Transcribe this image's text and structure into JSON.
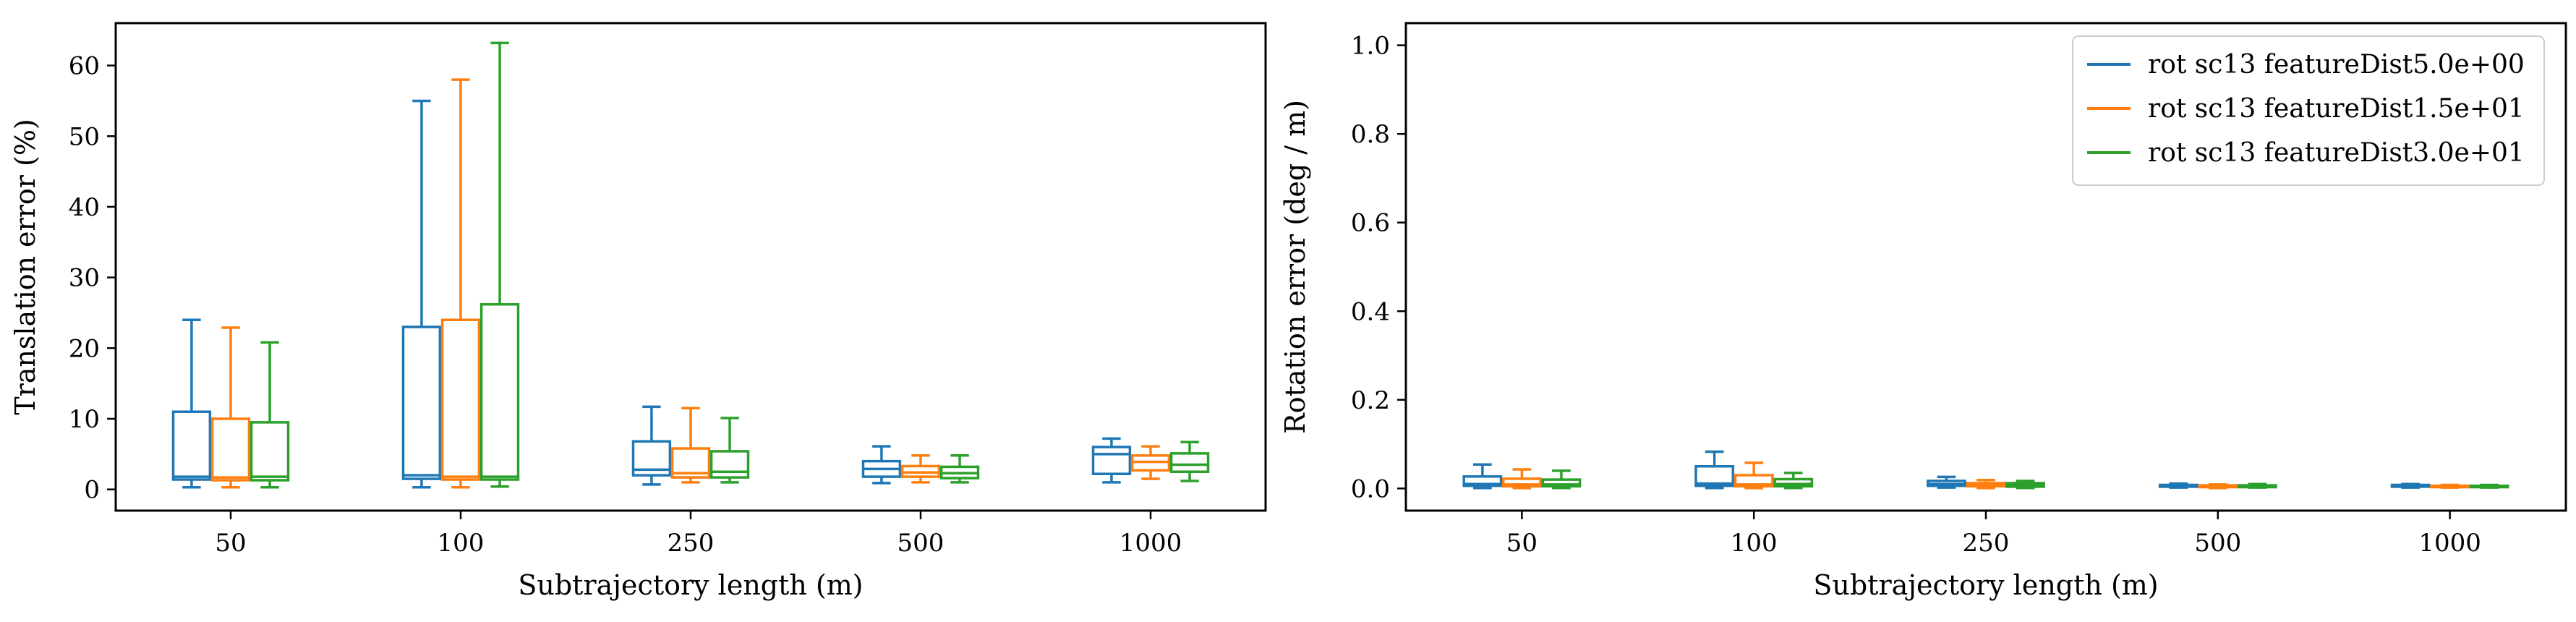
{
  "chart_data": [
    {
      "type": "box",
      "xlabel": "Subtrajectory length (m)",
      "ylabel": "Translation error (%)",
      "categories": [
        "50",
        "100",
        "250",
        "500",
        "1000"
      ],
      "ylim": [
        -3,
        66
      ],
      "yticks": [
        0,
        10,
        20,
        30,
        40,
        50,
        60
      ],
      "grid": false,
      "series": [
        {
          "name": "rot sc13 featureDist5.0e+00",
          "color": "#1f77b4",
          "boxes": [
            {
              "whislo": 0.3,
              "q1": 1.4,
              "med": 1.8,
              "q3": 11.0,
              "whishi": 24.0
            },
            {
              "whislo": 0.3,
              "q1": 1.5,
              "med": 2.0,
              "q3": 23.0,
              "whishi": 55.0
            },
            {
              "whislo": 0.7,
              "q1": 2.0,
              "med": 2.8,
              "q3": 6.8,
              "whishi": 11.7
            },
            {
              "whislo": 0.9,
              "q1": 1.8,
              "med": 2.9,
              "q3": 4.0,
              "whishi": 6.1
            },
            {
              "whislo": 1.0,
              "q1": 2.2,
              "med": 5.0,
              "q3": 6.0,
              "whishi": 7.2
            }
          ]
        },
        {
          "name": "rot sc13 featureDist1.5e+01",
          "color": "#ff7f0e",
          "boxes": [
            {
              "whislo": 0.3,
              "q1": 1.3,
              "med": 1.7,
              "q3": 10.0,
              "whishi": 22.9
            },
            {
              "whislo": 0.3,
              "q1": 1.4,
              "med": 1.8,
              "q3": 24.0,
              "whishi": 58.0
            },
            {
              "whislo": 1.0,
              "q1": 1.7,
              "med": 2.3,
              "q3": 5.8,
              "whishi": 11.5
            },
            {
              "whislo": 1.0,
              "q1": 1.8,
              "med": 2.4,
              "q3": 3.3,
              "whishi": 4.8
            },
            {
              "whislo": 1.5,
              "q1": 2.7,
              "med": 3.9,
              "q3": 4.8,
              "whishi": 6.1
            }
          ]
        },
        {
          "name": "rot sc13 featureDist3.0e+01",
          "color": "#2ca02c",
          "boxes": [
            {
              "whislo": 0.3,
              "q1": 1.3,
              "med": 1.8,
              "q3": 9.5,
              "whishi": 20.8
            },
            {
              "whislo": 0.4,
              "q1": 1.4,
              "med": 1.8,
              "q3": 26.2,
              "whishi": 63.2
            },
            {
              "whislo": 1.0,
              "q1": 1.7,
              "med": 2.5,
              "q3": 5.4,
              "whishi": 10.1
            },
            {
              "whislo": 1.0,
              "q1": 1.6,
              "med": 2.3,
              "q3": 3.2,
              "whishi": 4.8
            },
            {
              "whislo": 1.2,
              "q1": 2.5,
              "med": 3.5,
              "q3": 5.1,
              "whishi": 6.7
            }
          ]
        }
      ]
    },
    {
      "type": "box",
      "xlabel": "Subtrajectory length (m)",
      "ylabel": "Rotation error (deg / m)",
      "categories": [
        "50",
        "100",
        "250",
        "500",
        "1000"
      ],
      "ylim": [
        -0.05,
        1.05
      ],
      "yticks": [
        0.0,
        0.2,
        0.4,
        0.6,
        0.8,
        1.0
      ],
      "yticklabels": [
        "0.0",
        "0.2",
        "0.4",
        "0.6",
        "0.8",
        "1.0"
      ],
      "grid": false,
      "legend": "top-right",
      "series": [
        {
          "name": "rot sc13 featureDist5.0e+00",
          "color": "#1f77b4",
          "boxes": [
            {
              "whislo": 0.001,
              "q1": 0.006,
              "med": 0.01,
              "q3": 0.027,
              "whishi": 0.054
            },
            {
              "whislo": 0.001,
              "q1": 0.006,
              "med": 0.011,
              "q3": 0.05,
              "whishi": 0.083
            },
            {
              "whislo": 0.002,
              "q1": 0.006,
              "med": 0.01,
              "q3": 0.017,
              "whishi": 0.026
            },
            {
              "whislo": 0.002,
              "q1": 0.004,
              "med": 0.006,
              "q3": 0.008,
              "whishi": 0.011
            },
            {
              "whislo": 0.002,
              "q1": 0.004,
              "med": 0.005,
              "q3": 0.008,
              "whishi": 0.01
            }
          ]
        },
        {
          "name": "rot sc13 featureDist1.5e+01",
          "color": "#ff7f0e",
          "boxes": [
            {
              "whislo": 0.001,
              "q1": 0.005,
              "med": 0.009,
              "q3": 0.022,
              "whishi": 0.043
            },
            {
              "whislo": 0.001,
              "q1": 0.005,
              "med": 0.009,
              "q3": 0.03,
              "whishi": 0.058
            },
            {
              "whislo": 0.001,
              "q1": 0.005,
              "med": 0.008,
              "q3": 0.012,
              "whishi": 0.019
            },
            {
              "whislo": 0.001,
              "q1": 0.003,
              "med": 0.005,
              "q3": 0.007,
              "whishi": 0.009
            },
            {
              "whislo": 0.002,
              "q1": 0.003,
              "med": 0.005,
              "q3": 0.006,
              "whishi": 0.008
            }
          ]
        },
        {
          "name": "rot sc13 featureDist3.0e+01",
          "color": "#2ca02c",
          "boxes": [
            {
              "whislo": 0.001,
              "q1": 0.005,
              "med": 0.009,
              "q3": 0.02,
              "whishi": 0.04
            },
            {
              "whislo": 0.001,
              "q1": 0.005,
              "med": 0.01,
              "q3": 0.021,
              "whishi": 0.035
            },
            {
              "whislo": 0.001,
              "q1": 0.004,
              "med": 0.007,
              "q3": 0.012,
              "whishi": 0.017
            },
            {
              "whislo": 0.002,
              "q1": 0.003,
              "med": 0.005,
              "q3": 0.007,
              "whishi": 0.01
            },
            {
              "whislo": 0.002,
              "q1": 0.003,
              "med": 0.005,
              "q3": 0.006,
              "whishi": 0.008
            }
          ]
        }
      ]
    }
  ]
}
